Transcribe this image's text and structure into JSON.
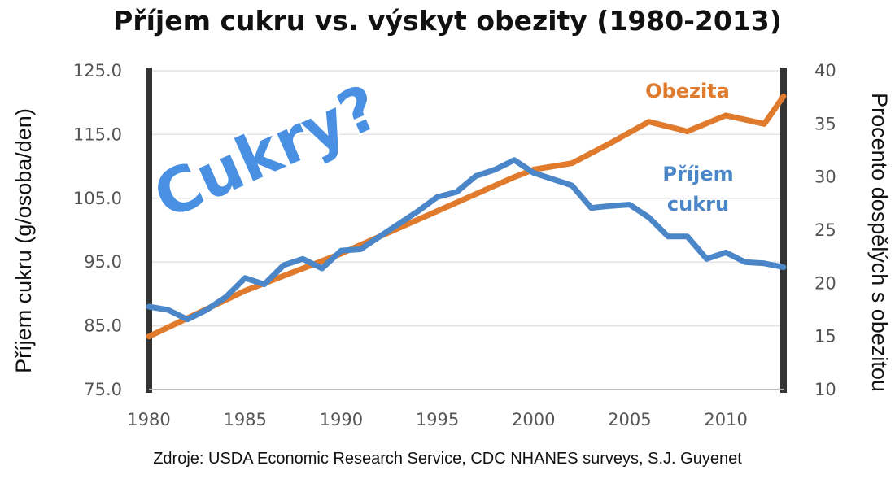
{
  "chart_data": {
    "type": "line",
    "title": "Příjem cukru vs. výskyt obezity (1980-2013)",
    "source": "Zdroje: USDA Economic Research Service, CDC NHANES surveys, S.J. Guyenet",
    "overlay_text": "Cukry?",
    "ylabel_left": "Příjem cukru (g/osoba/den)",
    "ylabel_right": "Procento dospělých s obezitou",
    "xlim": [
      1980,
      2013
    ],
    "ylim_left": [
      75,
      125
    ],
    "ylim_right": [
      10,
      40
    ],
    "x_ticks": [
      "1980",
      "1985",
      "1990",
      "1995",
      "2000",
      "2005",
      "2010"
    ],
    "y_left_ticks": [
      "125.0",
      "115.0",
      "105.0",
      "95.0",
      "85.0",
      "75.0"
    ],
    "y_right_ticks": [
      "40",
      "35",
      "30",
      "25",
      "20",
      "15",
      "10"
    ],
    "grid": true,
    "series": [
      {
        "name": "Obezita",
        "label_lines": [
          "Obezita"
        ],
        "axis": "right",
        "color": "#e07b2d",
        "x": [
          1980,
          1985,
          1990,
          1995,
          1999,
          2000,
          2002,
          2004,
          2006,
          2008,
          2010,
          2012,
          2013
        ],
        "y": [
          15.0,
          19.3,
          22.8,
          26.8,
          30.0,
          30.7,
          31.3,
          33.2,
          35.2,
          34.3,
          35.8,
          35.0,
          37.6
        ]
      },
      {
        "name": "Příjem cukru",
        "label_lines": [
          "Příjem",
          "cukru"
        ],
        "axis": "left",
        "color": "#4a86c8",
        "x": [
          1980,
          1981,
          1982,
          1983,
          1984,
          1985,
          1986,
          1987,
          1988,
          1989,
          1990,
          1991,
          1992,
          1993,
          1994,
          1995,
          1996,
          1997,
          1998,
          1999,
          2000,
          2001,
          2002,
          2003,
          2004,
          2005,
          2006,
          2007,
          2008,
          2009,
          2010,
          2011,
          2012,
          2013
        ],
        "y": [
          88.0,
          87.5,
          86.0,
          87.5,
          89.5,
          92.5,
          91.5,
          94.5,
          95.5,
          94.0,
          96.8,
          97.0,
          99.0,
          101.0,
          103.0,
          105.2,
          106.0,
          108.5,
          109.5,
          111.0,
          109.0,
          108.0,
          107.0,
          103.5,
          103.8,
          104.0,
          102.0,
          99.0,
          99.0,
          95.5,
          96.5,
          95.0,
          94.8,
          94.2
        ]
      }
    ]
  }
}
